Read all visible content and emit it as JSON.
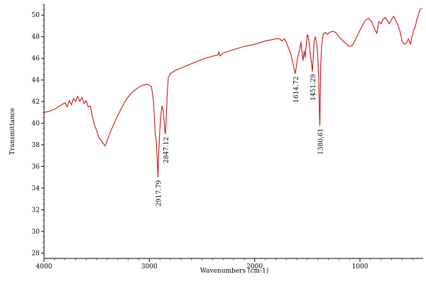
{
  "chart_data": {
    "type": "line",
    "title": "",
    "xlabel": "Wavenumbers (cm-1)",
    "ylabel": "Transmittance",
    "xlim": [
      4000,
      400
    ],
    "ylim": [
      27.5,
      51
    ],
    "x_ticks": [
      4000,
      3000,
      2000,
      1000
    ],
    "y_ticks": [
      28,
      30,
      32,
      34,
      36,
      38,
      40,
      42,
      44,
      46,
      48,
      50
    ],
    "grid": false,
    "legend": "none",
    "line_color": "#cc1111",
    "series": [
      {
        "points": [
          [
            4000,
            41.0
          ],
          [
            3950,
            41.1
          ],
          [
            3900,
            41.3
          ],
          [
            3850,
            41.6
          ],
          [
            3800,
            41.9
          ],
          [
            3780,
            41.5
          ],
          [
            3760,
            42.1
          ],
          [
            3740,
            41.7
          ],
          [
            3720,
            42.3
          ],
          [
            3700,
            42.0
          ],
          [
            3680,
            42.5
          ],
          [
            3660,
            42.0
          ],
          [
            3640,
            42.4
          ],
          [
            3620,
            41.8
          ],
          [
            3600,
            42.1
          ],
          [
            3580,
            41.5
          ],
          [
            3560,
            41.6
          ],
          [
            3540,
            40.6
          ],
          [
            3520,
            39.8
          ],
          [
            3500,
            39.3
          ],
          [
            3480,
            38.7
          ],
          [
            3450,
            38.3
          ],
          [
            3420,
            37.9
          ],
          [
            3400,
            38.4
          ],
          [
            3370,
            39.2
          ],
          [
            3320,
            40.3
          ],
          [
            3270,
            41.3
          ],
          [
            3220,
            42.2
          ],
          [
            3170,
            42.8
          ],
          [
            3120,
            43.2
          ],
          [
            3070,
            43.5
          ],
          [
            3020,
            43.6
          ],
          [
            2980,
            43.4
          ],
          [
            2960,
            42.0
          ],
          [
            2945,
            39.0
          ],
          [
            2935,
            38.5
          ],
          [
            2925,
            36.5
          ],
          [
            2918,
            35.0
          ],
          [
            2910,
            37.5
          ],
          [
            2900,
            39.5
          ],
          [
            2890,
            40.8
          ],
          [
            2880,
            41.6
          ],
          [
            2870,
            41.3
          ],
          [
            2860,
            40.2
          ],
          [
            2852,
            39.2
          ],
          [
            2847,
            39.0
          ],
          [
            2840,
            40.5
          ],
          [
            2830,
            42.8
          ],
          [
            2820,
            44.2
          ],
          [
            2800,
            44.6
          ],
          [
            2750,
            44.9
          ],
          [
            2700,
            45.1
          ],
          [
            2600,
            45.5
          ],
          [
            2500,
            45.9
          ],
          [
            2400,
            46.2
          ],
          [
            2350,
            46.3
          ],
          [
            2340,
            46.6
          ],
          [
            2330,
            46.2
          ],
          [
            2300,
            46.5
          ],
          [
            2200,
            46.8
          ],
          [
            2100,
            47.1
          ],
          [
            2000,
            47.3
          ],
          [
            1900,
            47.6
          ],
          [
            1850,
            47.7
          ],
          [
            1800,
            47.8
          ],
          [
            1760,
            47.8
          ],
          [
            1740,
            47.6
          ],
          [
            1720,
            47.8
          ],
          [
            1700,
            47.5
          ],
          [
            1680,
            47.0
          ],
          [
            1660,
            46.5
          ],
          [
            1640,
            45.7
          ],
          [
            1625,
            45.0
          ],
          [
            1615,
            44.6
          ],
          [
            1605,
            45.2
          ],
          [
            1590,
            46.2
          ],
          [
            1570,
            46.9
          ],
          [
            1560,
            47.5
          ],
          [
            1550,
            46.5
          ],
          [
            1540,
            45.8
          ],
          [
            1530,
            46.7
          ],
          [
            1520,
            46.1
          ],
          [
            1510,
            47.2
          ],
          [
            1500,
            48.2
          ],
          [
            1490,
            48.0
          ],
          [
            1480,
            47.2
          ],
          [
            1470,
            46.3
          ],
          [
            1460,
            45.5
          ],
          [
            1452,
            44.8
          ],
          [
            1445,
            45.8
          ],
          [
            1435,
            47.6
          ],
          [
            1425,
            48.0
          ],
          [
            1410,
            47.3
          ],
          [
            1400,
            46.0
          ],
          [
            1390,
            43.5
          ],
          [
            1385,
            41.0
          ],
          [
            1381,
            39.8
          ],
          [
            1378,
            41.5
          ],
          [
            1372,
            45.5
          ],
          [
            1365,
            47.0
          ],
          [
            1350,
            48.2
          ],
          [
            1330,
            48.4
          ],
          [
            1310,
            48.2
          ],
          [
            1290,
            48.4
          ],
          [
            1260,
            48.5
          ],
          [
            1230,
            48.4
          ],
          [
            1200,
            48.0
          ],
          [
            1150,
            47.5
          ],
          [
            1100,
            47.1
          ],
          [
            1070,
            47.2
          ],
          [
            1040,
            47.8
          ],
          [
            1000,
            48.6
          ],
          [
            950,
            49.5
          ],
          [
            920,
            49.7
          ],
          [
            890,
            49.4
          ],
          [
            860,
            48.7
          ],
          [
            840,
            48.3
          ],
          [
            820,
            49.4
          ],
          [
            800,
            49.2
          ],
          [
            780,
            49.6
          ],
          [
            760,
            49.8
          ],
          [
            740,
            49.5
          ],
          [
            720,
            49.2
          ],
          [
            700,
            49.6
          ],
          [
            680,
            49.9
          ],
          [
            660,
            49.5
          ],
          [
            640,
            49.1
          ],
          [
            620,
            48.5
          ],
          [
            600,
            47.6
          ],
          [
            580,
            47.3
          ],
          [
            560,
            47.4
          ],
          [
            540,
            47.8
          ],
          [
            520,
            47.3
          ],
          [
            505,
            48.0
          ],
          [
            490,
            48.6
          ],
          [
            475,
            48.9
          ],
          [
            460,
            49.6
          ],
          [
            445,
            50.0
          ],
          [
            430,
            50.5
          ],
          [
            420,
            50.6
          ],
          [
            410,
            50.6
          ]
        ]
      }
    ],
    "annotations": [
      {
        "text": "2917.79",
        "x": 2918,
        "y": 35.0
      },
      {
        "text": "2847.12",
        "x": 2847,
        "y": 39.0
      },
      {
        "text": "1614.72",
        "x": 1615,
        "y": 44.6
      },
      {
        "text": "1451.29",
        "x": 1452,
        "y": 44.8
      },
      {
        "text": "1380.61",
        "x": 1381,
        "y": 39.8
      }
    ]
  }
}
